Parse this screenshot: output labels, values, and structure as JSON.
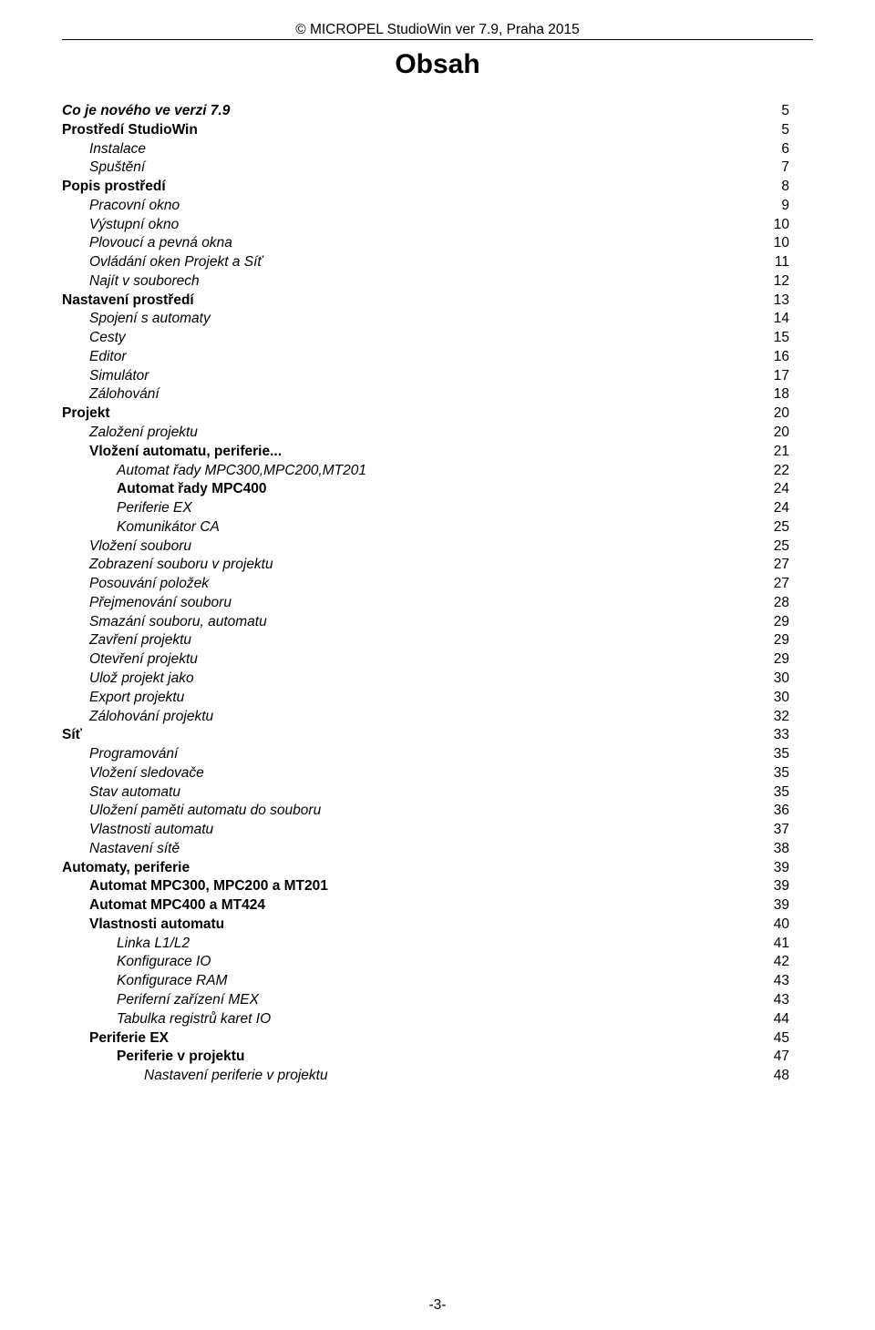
{
  "header": "© MICROPEL StudioWin ver 7.9,  Praha 2015",
  "title": "Obsah",
  "footer": "-3-",
  "toc": [
    {
      "label": "Co je nového ve verzi 7.9",
      "page": "5",
      "level": 0,
      "bold": true,
      "italic": true
    },
    {
      "label": "Prostředí StudioWin",
      "page": "5",
      "level": 0,
      "bold": true,
      "italic": false
    },
    {
      "label": "Instalace",
      "page": "6",
      "level": 1,
      "bold": false,
      "italic": true
    },
    {
      "label": "Spuštění",
      "page": "7",
      "level": 1,
      "bold": false,
      "italic": true
    },
    {
      "label": "Popis prostředí",
      "page": "8",
      "level": 0,
      "bold": true,
      "italic": false
    },
    {
      "label": "Pracovní okno",
      "page": "9",
      "level": 1,
      "bold": false,
      "italic": true
    },
    {
      "label": "Výstupní okno",
      "page": "10",
      "level": 1,
      "bold": false,
      "italic": true
    },
    {
      "label": "Plovoucí a pevná okna",
      "page": "10",
      "level": 1,
      "bold": false,
      "italic": true
    },
    {
      "label": "Ovládání oken Projekt a Síť",
      "page": "11",
      "level": 1,
      "bold": false,
      "italic": true
    },
    {
      "label": "Najít v souborech",
      "page": "12",
      "level": 1,
      "bold": false,
      "italic": true
    },
    {
      "label": "Nastavení prostředí",
      "page": "13",
      "level": 0,
      "bold": true,
      "italic": false
    },
    {
      "label": "Spojení s automaty",
      "page": "14",
      "level": 1,
      "bold": false,
      "italic": true
    },
    {
      "label": "Cesty",
      "page": "15",
      "level": 1,
      "bold": false,
      "italic": true
    },
    {
      "label": "Editor",
      "page": "16",
      "level": 1,
      "bold": false,
      "italic": true
    },
    {
      "label": "Simulátor",
      "page": "17",
      "level": 1,
      "bold": false,
      "italic": true
    },
    {
      "label": "Zálohování",
      "page": "18",
      "level": 1,
      "bold": false,
      "italic": true
    },
    {
      "label": "Projekt",
      "page": "20",
      "level": 0,
      "bold": true,
      "italic": false
    },
    {
      "label": "Založení projektu",
      "page": "20",
      "level": 1,
      "bold": false,
      "italic": true
    },
    {
      "label": "Vložení automatu, periferie...",
      "page": "21",
      "level": 1,
      "bold": true,
      "italic": false
    },
    {
      "label": "Automat řady MPC300,MPC200,MT201",
      "page": "22",
      "level": 2,
      "bold": false,
      "italic": true
    },
    {
      "label": "Automat řady MPC400",
      "page": "24",
      "level": 2,
      "bold": true,
      "italic": false
    },
    {
      "label": "Periferie EX",
      "page": "24",
      "level": 2,
      "bold": false,
      "italic": true
    },
    {
      "label": "Komunikátor CA",
      "page": "25",
      "level": 2,
      "bold": false,
      "italic": true
    },
    {
      "label": "Vložení souboru",
      "page": "25",
      "level": 1,
      "bold": false,
      "italic": true
    },
    {
      "label": "Zobrazení souboru v projektu",
      "page": "27",
      "level": 1,
      "bold": false,
      "italic": true
    },
    {
      "label": "Posouvání položek",
      "page": "27",
      "level": 1,
      "bold": false,
      "italic": true
    },
    {
      "label": "Přejmenování souboru",
      "page": "28",
      "level": 1,
      "bold": false,
      "italic": true
    },
    {
      "label": "Smazání souboru, automatu",
      "page": "29",
      "level": 1,
      "bold": false,
      "italic": true
    },
    {
      "label": "Zavření projektu",
      "page": "29",
      "level": 1,
      "bold": false,
      "italic": true
    },
    {
      "label": "Otevření projektu",
      "page": "29",
      "level": 1,
      "bold": false,
      "italic": true
    },
    {
      "label": "Ulož projekt jako",
      "page": "30",
      "level": 1,
      "bold": false,
      "italic": true
    },
    {
      "label": "Export projektu",
      "page": "30",
      "level": 1,
      "bold": false,
      "italic": true
    },
    {
      "label": "Zálohování projektu",
      "page": "32",
      "level": 1,
      "bold": false,
      "italic": true
    },
    {
      "label": "Síť",
      "page": "33",
      "level": 0,
      "bold": true,
      "italic": false
    },
    {
      "label": "Programování",
      "page": "35",
      "level": 1,
      "bold": false,
      "italic": true
    },
    {
      "label": "Vložení sledovače",
      "page": "35",
      "level": 1,
      "bold": false,
      "italic": true
    },
    {
      "label": "Stav automatu",
      "page": "35",
      "level": 1,
      "bold": false,
      "italic": true
    },
    {
      "label": "Uložení paměti automatu do souboru",
      "page": "36",
      "level": 1,
      "bold": false,
      "italic": true
    },
    {
      "label": "Vlastnosti automatu",
      "page": "37",
      "level": 1,
      "bold": false,
      "italic": true
    },
    {
      "label": "Nastavení sítě",
      "page": "38",
      "level": 1,
      "bold": false,
      "italic": true
    },
    {
      "label": "Automaty, periferie",
      "page": "39",
      "level": 0,
      "bold": true,
      "italic": false
    },
    {
      "label": "Automat MPC300, MPC200 a MT201",
      "page": "39",
      "level": 1,
      "bold": true,
      "italic": false
    },
    {
      "label": "Automat MPC400 a MT424",
      "page": "39",
      "level": 1,
      "bold": true,
      "italic": false
    },
    {
      "label": "Vlastnosti automatu",
      "page": "40",
      "level": 1,
      "bold": true,
      "italic": false
    },
    {
      "label": "Linka L1/L2",
      "page": "41",
      "level": 2,
      "bold": false,
      "italic": true
    },
    {
      "label": "Konfigurace IO",
      "page": "42",
      "level": 2,
      "bold": false,
      "italic": true
    },
    {
      "label": "Konfigurace RAM",
      "page": "43",
      "level": 2,
      "bold": false,
      "italic": true
    },
    {
      "label": "Periferní zařízení MEX",
      "page": "43",
      "level": 2,
      "bold": false,
      "italic": true
    },
    {
      "label": "Tabulka registrů karet IO",
      "page": "44",
      "level": 2,
      "bold": false,
      "italic": true
    },
    {
      "label": "Periferie EX",
      "page": "45",
      "level": 1,
      "bold": true,
      "italic": false
    },
    {
      "label": "Periferie v projektu",
      "page": "47",
      "level": 2,
      "bold": true,
      "italic": false
    },
    {
      "label": "Nastavení periferie v projektu",
      "page": "48",
      "level": 3,
      "bold": false,
      "italic": true
    }
  ]
}
